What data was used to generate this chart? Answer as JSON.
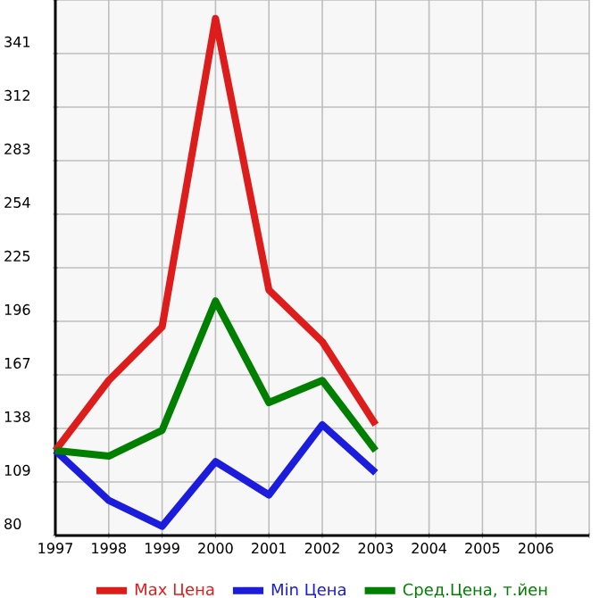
{
  "chart_data": {
    "type": "line",
    "x": [
      1997,
      1998,
      1999,
      2000,
      2001,
      2002,
      2003
    ],
    "series": [
      {
        "name": "Max Цена",
        "color": "#dd1c1c",
        "values": [
          126,
          164,
          193,
          360,
          213,
          185,
          140
        ]
      },
      {
        "name": "Min Цена",
        "color": "#1c1cdd",
        "values": [
          126,
          99,
          85,
          120,
          102,
          140,
          114
        ]
      },
      {
        "name": "Сред.Цена, т.йен",
        "color": "#007f00",
        "values": [
          126,
          123,
          137,
          207,
          152,
          164,
          126
        ]
      }
    ],
    "xlim": [
      1997,
      2007
    ],
    "xticks": [
      1997,
      1998,
      1999,
      2000,
      2001,
      2002,
      2003,
      2004,
      2005,
      2006,
      {
        "value": 2007,
        "label": null
      }
    ],
    "ylim": [
      80,
      370
    ],
    "yticks": [
      80,
      109,
      138,
      167,
      196,
      225,
      254,
      283,
      312,
      341,
      {
        "value": 370,
        "label": null
      }
    ],
    "grid": true,
    "legend": "bottom",
    "marker": "none",
    "line_style": "solid"
  }
}
